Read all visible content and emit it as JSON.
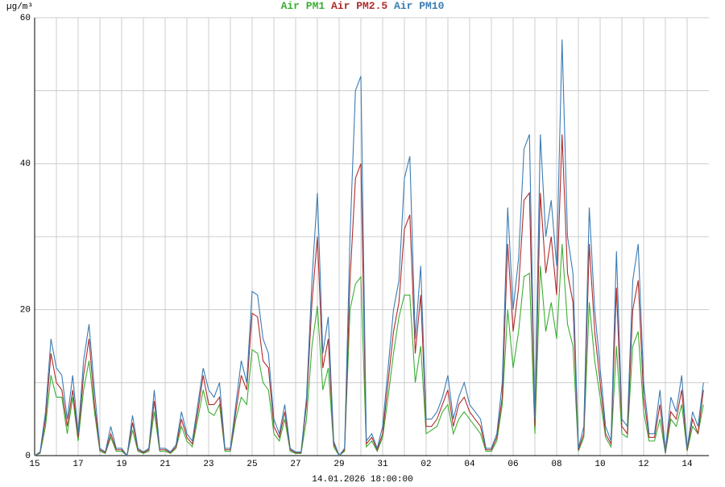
{
  "chart_data": {
    "type": "line",
    "y_unit": "µg/m³",
    "x_label": "14.01.2026 18:00:00",
    "x": [
      0,
      0.25,
      0.5,
      0.75,
      1,
      1.25,
      1.5,
      1.75,
      2,
      2.25,
      2.5,
      2.75,
      3,
      3.25,
      3.5,
      3.75,
      4,
      4.25,
      4.5,
      4.75,
      5,
      5.25,
      5.5,
      5.75,
      6,
      6.25,
      6.5,
      6.75,
      7,
      7.25,
      7.5,
      7.75,
      8,
      8.25,
      8.5,
      8.75,
      9,
      9.25,
      9.5,
      9.75,
      10,
      10.25,
      10.5,
      10.75,
      11,
      11.25,
      11.5,
      11.75,
      12,
      12.25,
      12.5,
      12.75,
      13,
      13.25,
      13.5,
      13.75,
      14,
      14.25,
      14.5,
      14.75,
      15,
      15.25,
      15.5,
      15.75,
      16,
      16.25,
      16.5,
      16.75,
      17,
      17.25,
      17.5,
      17.75,
      18,
      18.25,
      18.5,
      18.75,
      19,
      19.25,
      19.5,
      19.75,
      20,
      20.25,
      20.5,
      20.75,
      21,
      21.25,
      21.5,
      21.75,
      22,
      22.25,
      22.5,
      22.75,
      23,
      23.25,
      23.5,
      23.75,
      24,
      24.25,
      24.5,
      24.75,
      25,
      25.25,
      25.5,
      25.75,
      26,
      26.25,
      26.5,
      26.75,
      27,
      27.25,
      27.5,
      27.75,
      28,
      28.25,
      28.5,
      28.75,
      29,
      29.25,
      29.5,
      29.75,
      30,
      30.25,
      30.5,
      30.75
    ],
    "series": [
      {
        "name": "Air PM1",
        "color": "#3cae34",
        "values": [
          0,
          0.3,
          4,
          11,
          8,
          8,
          3,
          8,
          2,
          9,
          13,
          6,
          0.6,
          0.3,
          2.5,
          0.6,
          0.6,
          0,
          3.5,
          0.6,
          0.3,
          0.6,
          6,
          0.6,
          0.6,
          0.3,
          1,
          4,
          2,
          1.2,
          5,
          9,
          6,
          5.5,
          7,
          0.6,
          0.6,
          5,
          8,
          7,
          14.5,
          14,
          10,
          9,
          3,
          2,
          5,
          0.6,
          0.3,
          0.3,
          5,
          15,
          20.5,
          9,
          12,
          1.2,
          0,
          0.6,
          20,
          23.5,
          24.5,
          1.2,
          2,
          0.6,
          2.5,
          8,
          14,
          19,
          22,
          22,
          10,
          15,
          3,
          3.5,
          4,
          6,
          7,
          3,
          5,
          6,
          5,
          4,
          3,
          0.6,
          0.6,
          2,
          7,
          20,
          12,
          17,
          24.5,
          25,
          3,
          26,
          17,
          21,
          16,
          29,
          18,
          15,
          0.6,
          2.5,
          21,
          13,
          8,
          2.5,
          1.2,
          15,
          3,
          2.5,
          15,
          17,
          6,
          2,
          2,
          5,
          0.3,
          5,
          4,
          7,
          0.6,
          4,
          3,
          7
        ]
      },
      {
        "name": "Air PM2.5",
        "color": "#b02c2c",
        "values": [
          0,
          0.4,
          5,
          14,
          10,
          9,
          4,
          9,
          2.5,
          11,
          16,
          7,
          0.8,
          0.4,
          3,
          0.8,
          0.8,
          0,
          4.5,
          0.8,
          0.4,
          0.8,
          7.5,
          0.8,
          0.8,
          0.4,
          1.2,
          5,
          2.5,
          1.6,
          6,
          11,
          7,
          7,
          8,
          0.8,
          0.8,
          6,
          11,
          9,
          19.5,
          19,
          13,
          12,
          4,
          2.5,
          6,
          0.8,
          0.4,
          0.4,
          7,
          21,
          30,
          12,
          16,
          1.6,
          0,
          0.8,
          24,
          38,
          40,
          1.6,
          2.5,
          0.8,
          3,
          10,
          17,
          21,
          31,
          33,
          14,
          22,
          4,
          4,
          5,
          7,
          9,
          4,
          7,
          8,
          6,
          5,
          4,
          0.8,
          0.8,
          2.5,
          8,
          29,
          17,
          23,
          35,
          36,
          4,
          36,
          25,
          30,
          22,
          44,
          25,
          21,
          0.8,
          3,
          29,
          17,
          10,
          3,
          1.6,
          23,
          4,
          3,
          20,
          24,
          8,
          2.5,
          2.5,
          7,
          0.4,
          6,
          5,
          9,
          0.8,
          5,
          3,
          9
        ]
      },
      {
        "name": "Air PM10",
        "color": "#3c7cb4",
        "values": [
          0,
          0.5,
          6,
          16,
          12,
          11,
          5,
          11,
          3,
          13,
          18,
          9,
          1,
          0.5,
          4,
          1,
          1,
          0,
          5.5,
          1,
          0.5,
          1,
          9,
          1,
          1,
          0.5,
          1.5,
          6,
          3,
          2,
          7,
          12,
          9,
          8,
          10,
          1,
          1,
          7,
          13,
          10,
          22.5,
          22,
          16,
          14,
          5,
          3,
          7,
          1,
          0.5,
          0.5,
          8,
          24,
          36,
          14,
          19,
          2,
          0,
          1,
          30,
          50,
          52,
          2,
          3,
          1,
          4,
          12,
          20,
          24,
          38,
          41,
          16,
          26,
          5,
          5,
          6,
          8,
          11,
          5,
          8,
          10,
          7,
          6,
          5,
          1,
          1,
          3,
          10,
          34,
          20,
          27,
          42,
          44,
          5,
          44,
          30,
          35,
          26,
          57,
          30,
          25,
          1,
          4,
          34,
          20,
          12,
          4,
          2,
          28,
          5,
          4,
          24,
          29,
          10,
          3,
          3,
          9,
          0.5,
          8,
          6,
          11,
          1,
          6,
          4,
          10
        ]
      }
    ],
    "xlim": [
      0,
      31
    ],
    "xticks": [
      {
        "value": 0,
        "label": "15"
      },
      {
        "value": 2,
        "label": "17"
      },
      {
        "value": 4,
        "label": "19"
      },
      {
        "value": 6,
        "label": "21"
      },
      {
        "value": 8,
        "label": "23"
      },
      {
        "value": 10,
        "label": "25"
      },
      {
        "value": 12,
        "label": "27"
      },
      {
        "value": 14,
        "label": "29"
      },
      {
        "value": 16,
        "label": "31"
      },
      {
        "value": 18,
        "label": "02"
      },
      {
        "value": 20,
        "label": "04"
      },
      {
        "value": 22,
        "label": "06"
      },
      {
        "value": 24,
        "label": "08"
      },
      {
        "value": 26,
        "label": "10"
      },
      {
        "value": 28,
        "label": "12"
      },
      {
        "value": 30,
        "label": "14"
      }
    ],
    "x_minor_ticks": [
      1,
      3,
      5,
      7,
      9,
      11,
      13,
      15,
      17,
      19,
      21,
      23,
      25,
      27,
      29
    ],
    "ylim": [
      0,
      60
    ],
    "yticks": [
      0,
      20,
      40,
      60
    ],
    "y_minor_ticks": [
      10,
      30,
      50
    ],
    "grid": true
  }
}
